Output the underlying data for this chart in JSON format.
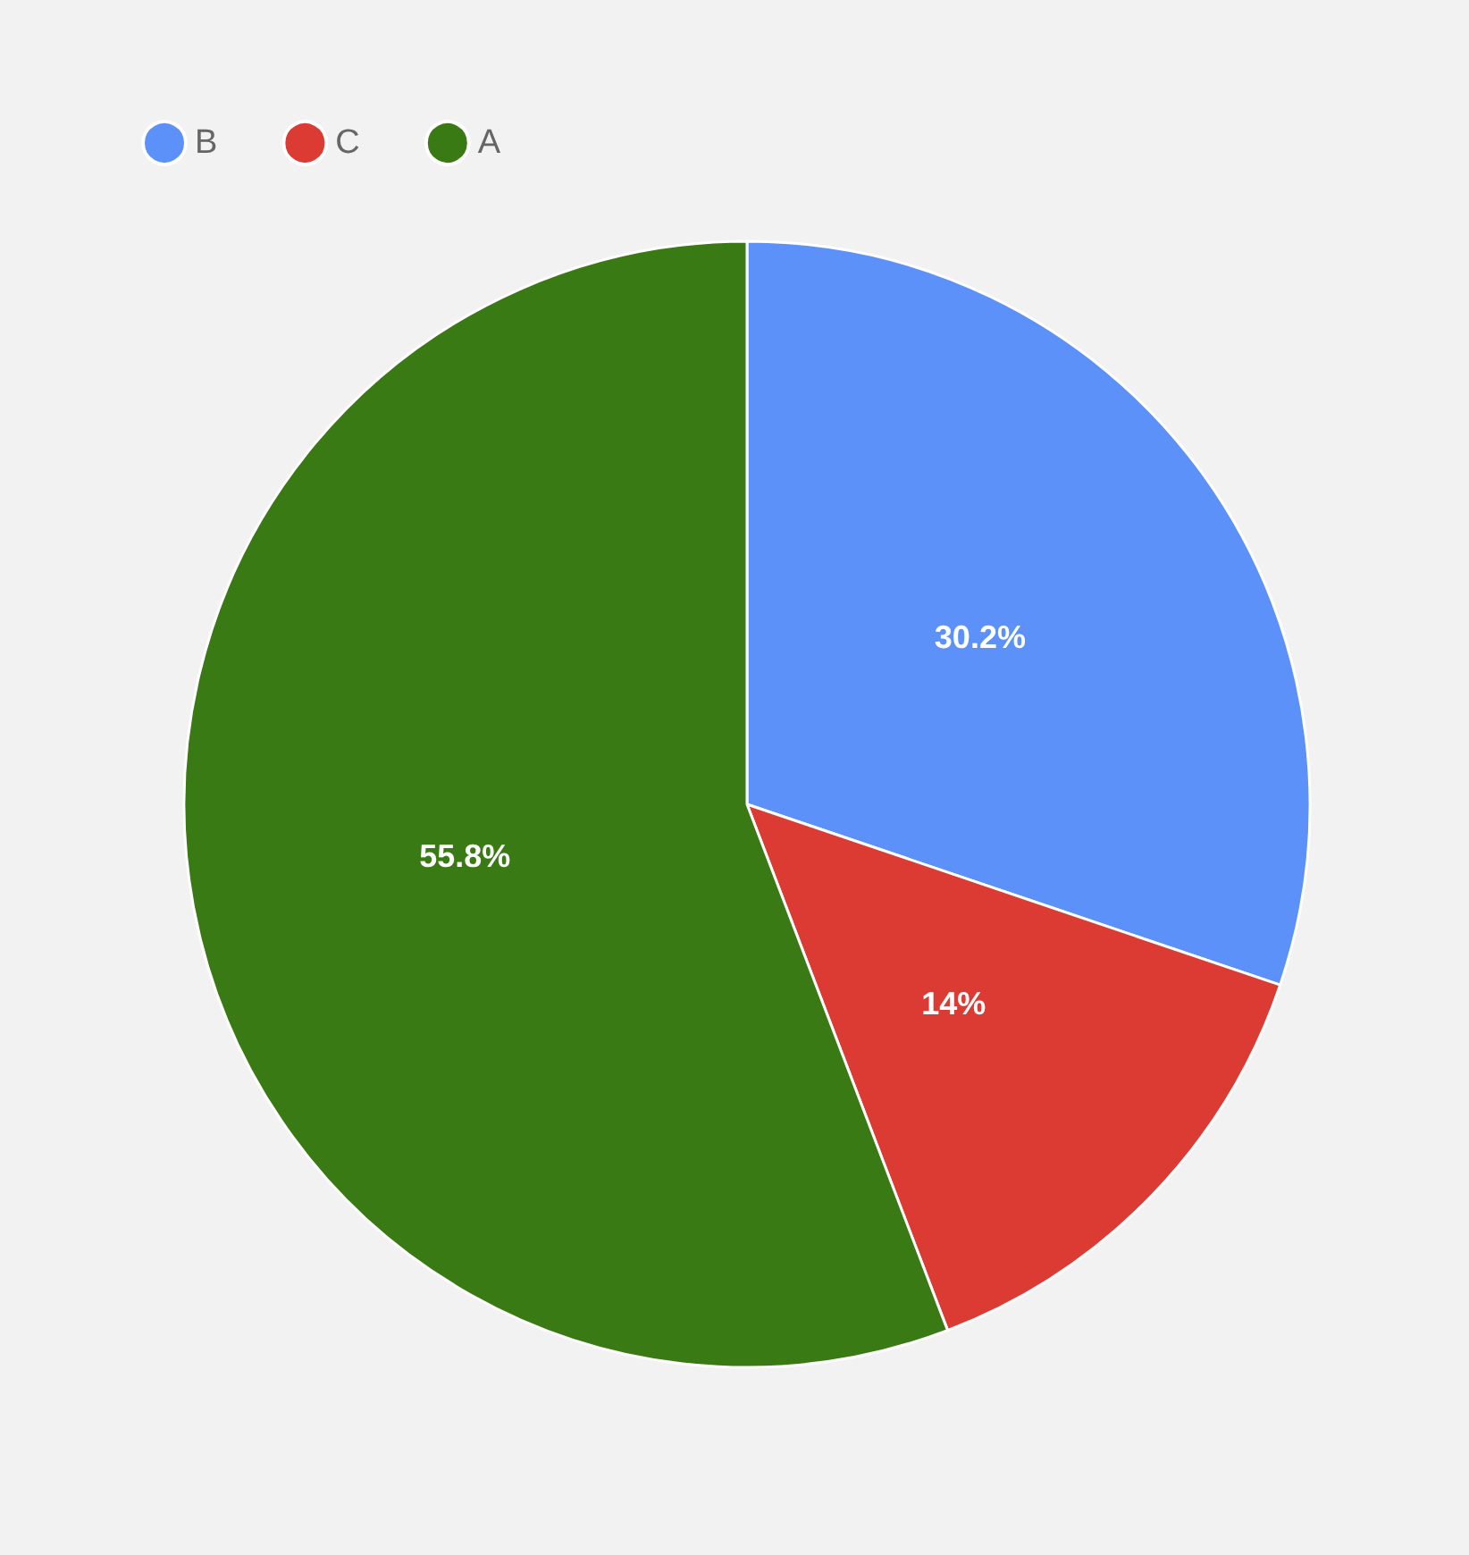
{
  "chart_data": {
    "type": "pie",
    "categories": [
      "B",
      "C",
      "A"
    ],
    "values": [
      30.2,
      14,
      55.8
    ],
    "colors": [
      "#5b91f9",
      "#dc3b33",
      "#3a7a14"
    ],
    "value_labels": [
      "30.2%",
      "14%",
      "55.8%"
    ],
    "legend": "top left"
  }
}
